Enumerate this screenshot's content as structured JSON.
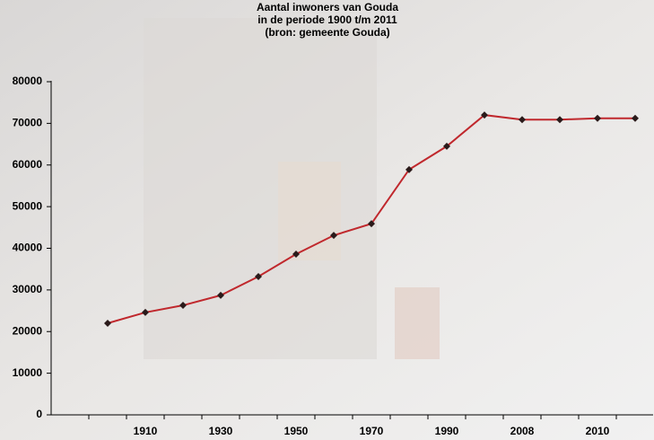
{
  "chart_data": {
    "type": "line",
    "title": [
      "Aantal inwoners van Gouda",
      "in de periode 1900 t/m 2011",
      "(bron: gemeente Gouda)"
    ],
    "categories": [
      null,
      "1910",
      null,
      "1930",
      null,
      "1950",
      null,
      "1970",
      null,
      "1990",
      null,
      "2008",
      null,
      "2010",
      null
    ],
    "series": [
      {
        "name": "Inwoners",
        "color": "#c0282d",
        "marker_color": "#2a1a1a",
        "values": [
          22000,
          24600,
          26300,
          28700,
          33200,
          38600,
          43100,
          45900,
          58900,
          64500,
          72000,
          70900,
          70900,
          71200,
          71200
        ]
      }
    ],
    "ylim": [
      0,
      80000
    ],
    "yticks": [
      0,
      10000,
      20000,
      30000,
      40000,
      50000,
      60000,
      70000,
      80000
    ]
  }
}
